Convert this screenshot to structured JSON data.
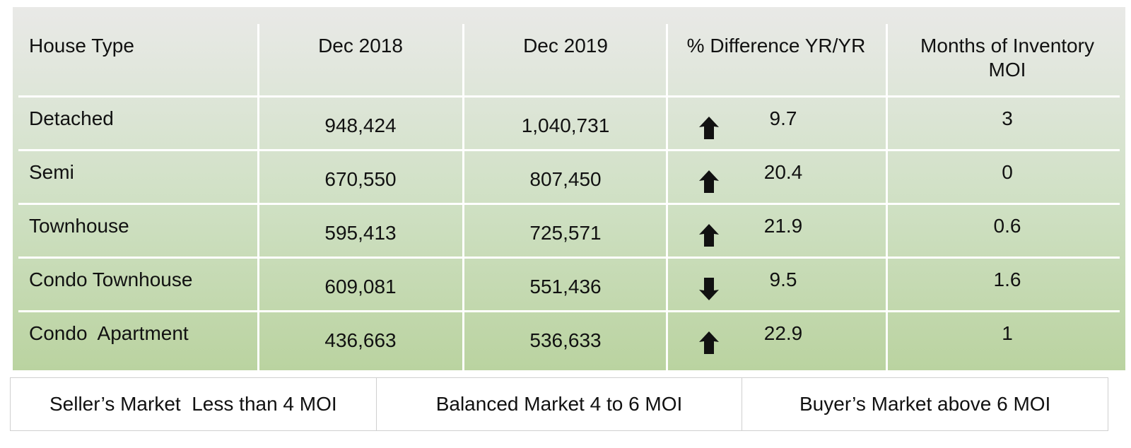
{
  "table": {
    "headers": [
      "House Type",
      "Dec 2018",
      "Dec 2019",
      "% Difference YR/YR",
      "Months of Inventory MOI"
    ],
    "header_moi_line1": "Months of Inventory",
    "header_moi_line2": "MOI",
    "rows": [
      {
        "type": "Detached",
        "dec2018": "948,424",
        "dec2019": "1,040,731",
        "direction": "up",
        "pct": "9.7",
        "moi": "3"
      },
      {
        "type": "Semi",
        "dec2018": "670,550",
        "dec2019": "807,450",
        "direction": "up",
        "pct": "20.4",
        "moi": "0"
      },
      {
        "type": "Townhouse",
        "dec2018": "595,413",
        "dec2019": "725,571",
        "direction": "up",
        "pct": "21.9",
        "moi": "0.6"
      },
      {
        "type": "Condo Townhouse",
        "dec2018": "609,081",
        "dec2019": "551,436",
        "direction": "down",
        "pct": "9.5",
        "moi": "1.6"
      },
      {
        "type": "Condo  Apartment",
        "dec2018": "436,663",
        "dec2019": "536,633",
        "direction": "up",
        "pct": "22.9",
        "moi": "1"
      }
    ]
  },
  "legend": {
    "sellers": "Seller’s Market  Less than 4 MOI",
    "balanced": "Balanced Market 4 to 6 MOI",
    "buyers": "Buyer’s Market above 6 MOI"
  },
  "icons": {
    "up": "arrow-up-icon",
    "down": "arrow-down-icon"
  },
  "colors": {
    "gradient_top": "#e9e9e7",
    "gradient_bottom": "#bad3a0",
    "grid_lines": "#ffffff",
    "arrow": "#111111"
  }
}
